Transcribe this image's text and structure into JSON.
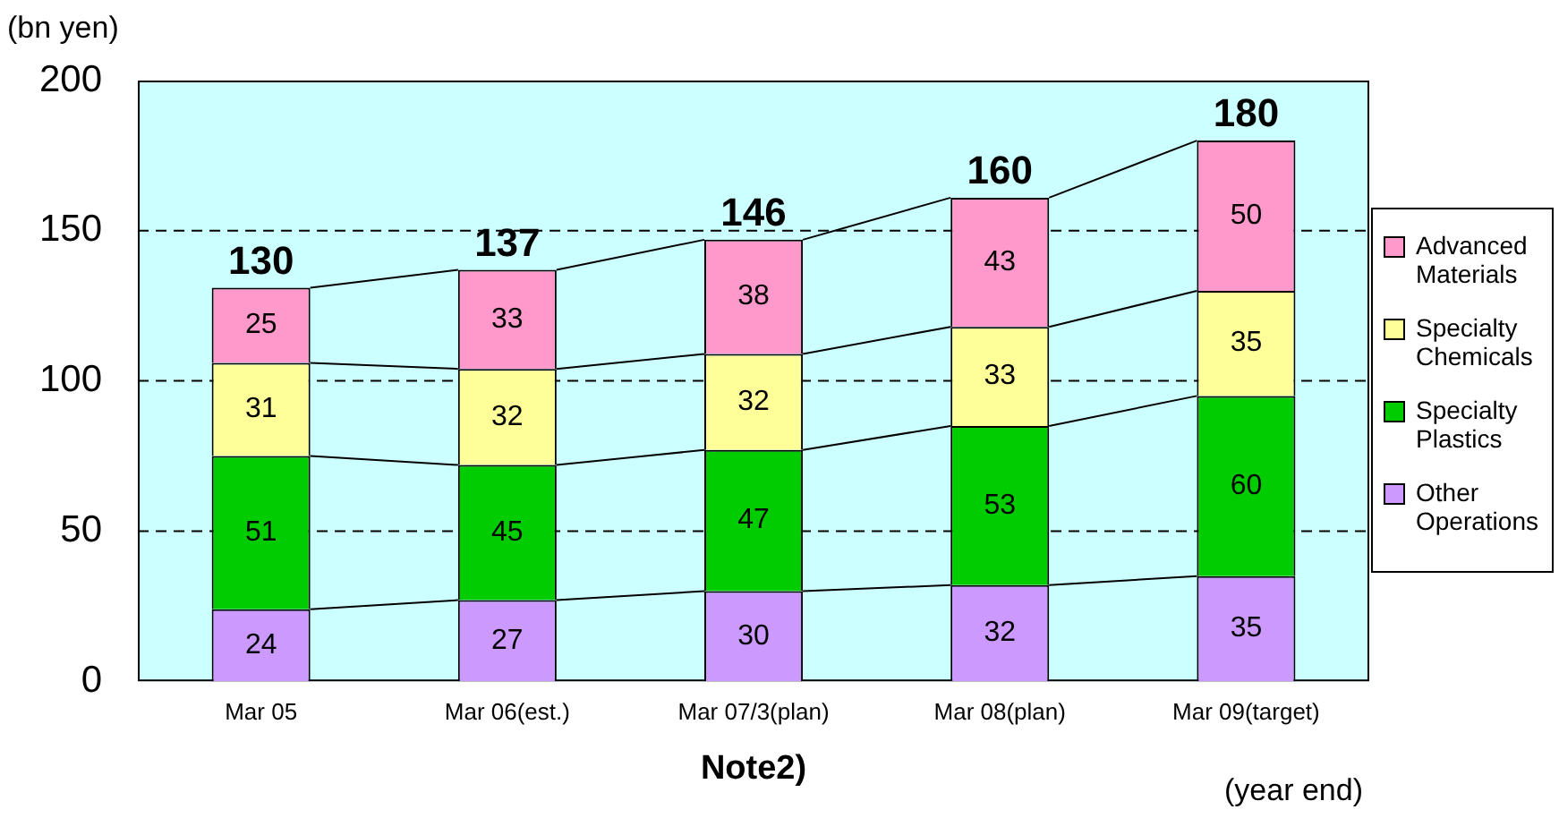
{
  "chart_data": {
    "type": "bar",
    "stacked": true,
    "ylabel": "(bn yen)",
    "xlabel": "Note2)",
    "categories": [
      "Mar 05",
      "Mar 06(est.)",
      "Mar 07/3(plan)",
      "Mar 08(plan)",
      "Mar 09(target)"
    ],
    "series": [
      {
        "name": "Other Operations",
        "color": "#cc99ff",
        "values": [
          24,
          27,
          30,
          32,
          35
        ]
      },
      {
        "name": "Specialty Plastics",
        "color": "#00cc00",
        "values": [
          51,
          45,
          47,
          53,
          60
        ]
      },
      {
        "name": "Specialty Chemicals",
        "color": "#ffff99",
        "values": [
          31,
          32,
          32,
          33,
          35
        ]
      },
      {
        "name": "Advanced Materials",
        "color": "#ff99cc",
        "values": [
          25,
          33,
          38,
          43,
          50
        ]
      }
    ],
    "totals": [
      "130",
      "137",
      "146",
      "160",
      "180"
    ],
    "ylim": [
      0,
      200
    ],
    "yticks": [
      0,
      50,
      100,
      150,
      200
    ],
    "grid": "y",
    "legend": "right",
    "data_labels": true,
    "annotations": [
      "(year end)"
    ]
  }
}
